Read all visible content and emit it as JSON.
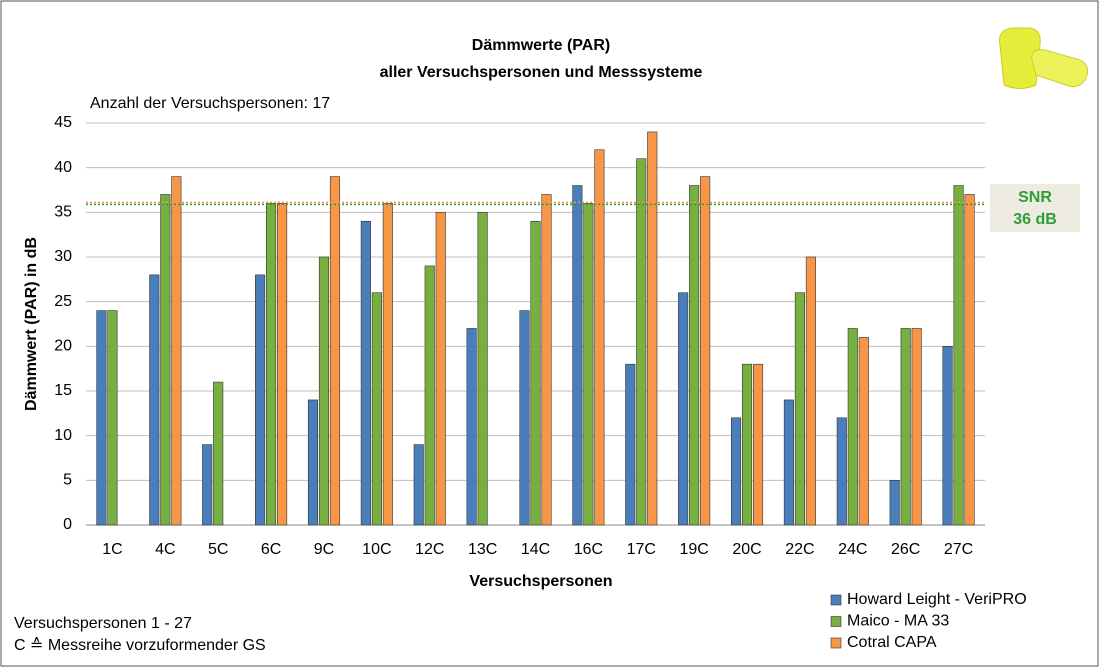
{
  "chart_data": {
    "type": "bar",
    "title": "Dämmwerte (PAR)",
    "subtitle": "aller Versuchspersonen und Messsysteme",
    "annotation": "Anzahl der Versuchspersonen: 17",
    "notes": [
      "Versuchspersonen 1 - 27",
      "C ≙ Messreihe vorzuformender GS"
    ],
    "x_label": "Versuchspersonen",
    "y_label": "Dämmwert (PAR) in dB",
    "categories": [
      "1C",
      "4C",
      "5C",
      "6C",
      "9C",
      "10C",
      "12C",
      "13C",
      "14C",
      "16C",
      "17C",
      "19C",
      "20C",
      "22C",
      "24C",
      "26C",
      "27C"
    ],
    "series": [
      {
        "name": "Howard Leight - VeriPRO",
        "color": "#4a7ebb",
        "values": [
          24,
          28,
          9,
          28,
          14,
          34,
          9,
          22,
          24,
          38,
          18,
          26,
          12,
          14,
          12,
          5,
          20
        ]
      },
      {
        "name": "Maico - MA 33",
        "color": "#77b041",
        "values": [
          24,
          37,
          16,
          36,
          30,
          26,
          29,
          35,
          34,
          36,
          41,
          38,
          18,
          26,
          22,
          22,
          38
        ]
      },
      {
        "name": "Cotral CAPA",
        "color": "#f79646",
        "values": [
          null,
          39,
          null,
          36,
          39,
          36,
          35,
          null,
          37,
          42,
          44,
          39,
          18,
          30,
          21,
          22,
          37
        ]
      }
    ],
    "reference_line": {
      "value": 36,
      "label_lines": [
        "SNR",
        "36 dB"
      ],
      "color": "#2e9e3a"
    },
    "ylim": [
      0,
      45
    ],
    "yticks": [
      0,
      5,
      10,
      15,
      20,
      25,
      30,
      35,
      40,
      45
    ],
    "grid": true,
    "legend": "bottom-right"
  }
}
